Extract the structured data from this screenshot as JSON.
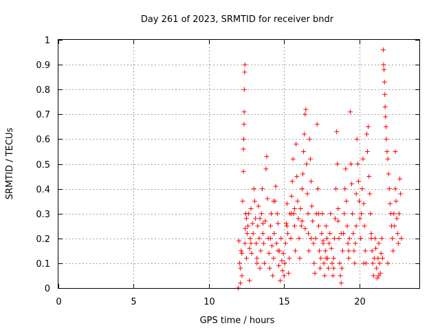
{
  "chart_data": {
    "type": "scatter",
    "title": "Day 261 of 2023, SRMTID for receiver bndr",
    "xlabel": "GPS time / hours",
    "ylabel": "SRMTID / TECUs",
    "xlim": [
      0,
      24
    ],
    "ylim": [
      0,
      1
    ],
    "xticks": [
      "0",
      "5",
      "10",
      "15",
      "20"
    ],
    "yticks": [
      "0",
      "0.1",
      "0.2",
      "0.3",
      "0.4",
      "0.5",
      "0.6",
      "0.7",
      "0.8",
      "0.9",
      "1"
    ],
    "grid": true,
    "marker": "+",
    "color": "#ff0000",
    "series": [
      {
        "x": [
          11.95,
          12.0,
          12.05,
          12.1,
          12.15,
          12.2,
          12.25,
          12.3,
          12.3,
          12.32,
          12.34,
          12.35,
          12.36,
          12.38,
          12.4,
          12.4,
          12.42,
          12.45,
          12.5,
          12.55,
          12.6,
          12.65,
          12.7,
          12.75,
          12.8,
          12.85,
          12.9,
          12.95,
          13.0,
          13.05,
          13.1,
          13.15,
          13.2,
          13.25,
          13.3,
          13.35,
          13.4,
          13.45,
          13.5,
          13.55,
          13.6,
          13.65,
          13.7,
          13.75,
          13.8,
          13.85,
          13.9,
          13.95,
          14.0,
          14.05,
          14.1,
          14.15,
          14.2,
          14.25,
          14.3,
          14.35,
          14.4,
          14.45,
          14.5,
          14.55,
          14.6,
          14.65,
          14.7,
          14.75,
          14.8,
          14.85,
          14.9,
          14.95,
          15.0,
          15.05,
          15.1,
          15.15,
          15.2,
          15.25,
          15.3,
          15.35,
          15.4,
          15.45,
          15.5,
          15.55,
          15.6,
          15.65,
          15.7,
          15.75,
          15.8,
          15.85,
          15.9,
          15.95,
          16.0,
          16.05,
          16.1,
          16.15,
          16.2,
          16.25,
          16.3,
          16.35,
          16.4,
          16.45,
          16.5,
          16.55,
          16.6,
          16.62,
          16.65,
          16.7,
          16.75,
          16.8,
          16.85,
          16.9,
          16.95,
          17.0,
          17.05,
          17.1,
          17.15,
          17.2,
          17.25,
          17.3,
          17.35,
          17.4,
          17.45,
          17.5,
          17.55,
          17.6,
          17.65,
          17.7,
          17.75,
          17.8,
          17.85,
          17.9,
          17.95,
          18.0,
          18.05,
          18.1,
          18.15,
          18.2,
          18.25,
          18.3,
          18.35,
          18.4,
          18.45,
          18.5,
          18.55,
          18.6,
          18.65,
          18.7,
          18.75,
          18.8,
          18.85,
          18.9,
          18.95,
          19.0,
          19.05,
          19.1,
          19.15,
          19.2,
          19.25,
          19.3,
          19.35,
          19.4,
          19.45,
          19.5,
          19.55,
          19.6,
          19.65,
          19.7,
          19.75,
          19.8,
          19.85,
          19.9,
          19.95,
          20.0,
          20.05,
          20.1,
          20.15,
          20.2,
          20.25,
          20.3,
          20.35,
          20.4,
          20.45,
          20.5,
          20.55,
          20.6,
          20.65,
          20.7,
          20.75,
          20.8,
          20.85,
          20.9,
          20.95,
          21.0,
          21.05,
          21.1,
          21.15,
          21.2,
          21.25,
          21.3,
          21.35,
          21.4,
          21.45,
          21.5,
          21.55,
          21.6,
          21.62,
          21.65,
          21.68,
          21.7,
          21.72,
          21.75,
          21.78,
          21.8,
          21.85,
          21.9,
          21.95,
          22.0,
          22.05,
          22.1,
          22.15,
          22.2,
          22.25,
          22.3,
          22.35,
          22.4,
          22.45,
          22.5,
          22.55,
          22.6,
          22.65,
          22.7,
          22.75,
          22.8,
          12.1,
          12.2,
          12.5,
          12.8,
          13.2,
          13.6,
          14.1,
          14.6,
          15.2,
          15.7,
          16.2,
          16.8,
          17.3,
          17.8,
          18.3,
          18.8,
          19.3,
          19.8,
          20.3,
          20.8,
          21.3,
          21.9,
          22.4,
          12.7,
          13.4,
          14.3,
          15.5,
          16.4,
          17.6,
          18.6
        ],
        "y": [
          0.0,
          0.19,
          0.1,
          0.08,
          0.15,
          0.05,
          0.35,
          0.47,
          0.56,
          0.6,
          0.66,
          0.71,
          0.8,
          0.87,
          0.9,
          0.18,
          0.24,
          0.3,
          0.12,
          0.22,
          0.25,
          0.3,
          0.03,
          0.2,
          0.32,
          0.14,
          0.26,
          0.22,
          0.4,
          0.35,
          0.28,
          0.18,
          0.12,
          0.25,
          0.33,
          0.2,
          0.08,
          0.15,
          0.3,
          0.4,
          0.22,
          0.18,
          0.1,
          0.27,
          0.48,
          0.53,
          0.36,
          0.2,
          0.14,
          0.08,
          0.25,
          0.3,
          0.17,
          0.05,
          0.12,
          0.22,
          0.35,
          0.41,
          0.18,
          0.3,
          0.26,
          0.09,
          0.15,
          0.03,
          0.2,
          0.11,
          0.07,
          0.14,
          0.05,
          0.1,
          0.18,
          0.26,
          0.34,
          0.22,
          0.06,
          0.12,
          0.3,
          0.2,
          0.37,
          0.43,
          0.52,
          0.3,
          0.25,
          0.15,
          0.58,
          0.45,
          0.35,
          0.28,
          0.2,
          0.12,
          0.32,
          0.25,
          0.4,
          0.46,
          0.55,
          0.62,
          0.7,
          0.72,
          0.5,
          0.38,
          0.3,
          0.22,
          0.15,
          0.6,
          0.52,
          0.43,
          0.33,
          0.27,
          0.18,
          0.1,
          0.06,
          0.2,
          0.3,
          0.66,
          0.4,
          0.25,
          0.15,
          0.08,
          0.12,
          0.22,
          0.3,
          0.18,
          0.1,
          0.05,
          0.15,
          0.25,
          0.2,
          0.12,
          0.08,
          0.18,
          0.22,
          0.3,
          0.16,
          0.1,
          0.05,
          0.12,
          0.2,
          0.28,
          0.4,
          0.63,
          0.5,
          0.32,
          0.2,
          0.1,
          0.05,
          0.02,
          0.08,
          0.15,
          0.22,
          0.3,
          0.4,
          0.48,
          0.35,
          0.25,
          0.18,
          0.12,
          0.2,
          0.71,
          0.5,
          0.42,
          0.3,
          0.22,
          0.15,
          0.1,
          0.18,
          0.38,
          0.6,
          0.5,
          0.43,
          0.35,
          0.28,
          0.2,
          0.3,
          0.4,
          0.52,
          0.34,
          0.25,
          0.15,
          0.1,
          0.62,
          0.55,
          0.65,
          0.45,
          0.38,
          0.3,
          0.22,
          0.15,
          0.1,
          0.05,
          0.12,
          0.2,
          0.16,
          0.08,
          0.04,
          0.12,
          0.18,
          0.1,
          0.06,
          0.14,
          0.2,
          0.12,
          0.96,
          0.9,
          0.88,
          0.83,
          0.78,
          0.73,
          0.69,
          0.65,
          0.6,
          0.55,
          0.52,
          0.46,
          0.4,
          0.34,
          0.3,
          0.25,
          0.2,
          0.15,
          0.3,
          0.25,
          0.4,
          0.35,
          0.28,
          0.22,
          0.18,
          0.3,
          0.44,
          0.38,
          0.2,
          0.02,
          0.14,
          0.28,
          0.18,
          0.1,
          0.26,
          0.2,
          0.15,
          0.25,
          0.32,
          0.27,
          0.2,
          0.3,
          0.12,
          0.08,
          0.22,
          0.15,
          0.25,
          0.1,
          0.2,
          0.05,
          0.1,
          0.55,
          0.16,
          0.28,
          0.35,
          0.3,
          0.24,
          0.19,
          0.27
        ]
      }
    ]
  }
}
